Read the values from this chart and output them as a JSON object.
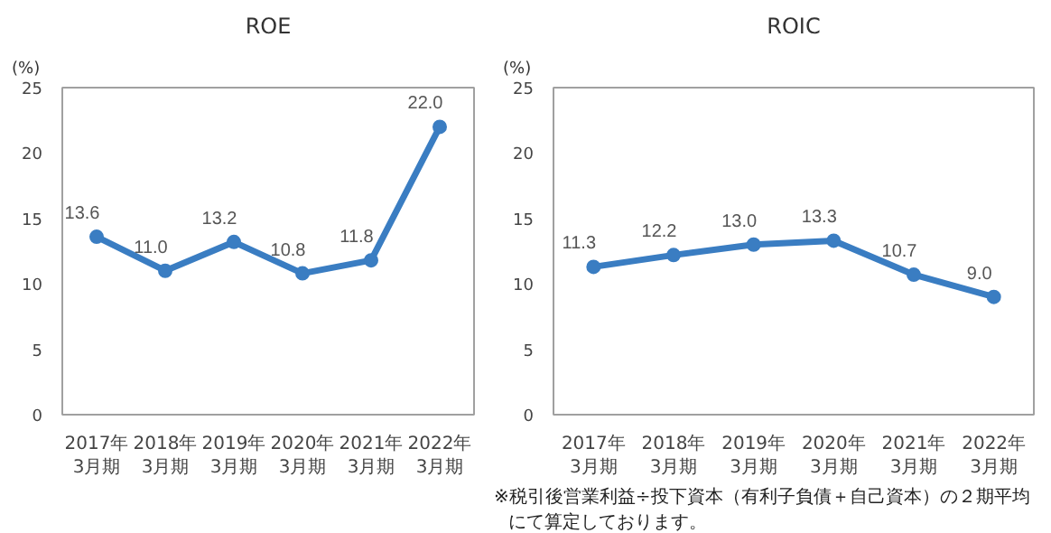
{
  "chart_data": [
    {
      "type": "line",
      "title": "ROE",
      "ylabel": "(%)",
      "categories": [
        "2017年\n3月期",
        "2018年\n3月期",
        "2019年\n3月期",
        "2020年\n3月期",
        "2021年\n3月期",
        "2022年\n3月期"
      ],
      "series": [
        {
          "color": "#3a7dc2",
          "values": [
            13.6,
            11.0,
            13.2,
            10.8,
            11.8,
            22.0
          ],
          "value_labels": [
            "13.6",
            "11.0",
            "13.2",
            "10.8",
            "11.8",
            "22.0"
          ]
        }
      ],
      "ylim": [
        0,
        25
      ],
      "yticks": [
        0,
        5,
        10,
        15,
        20,
        25
      ],
      "grid": false,
      "marker": "circle",
      "line_style": "solid"
    },
    {
      "type": "line",
      "title": "ROIC",
      "ylabel": "(%)",
      "categories": [
        "2017年\n3月期",
        "2018年\n3月期",
        "2019年\n3月期",
        "2020年\n3月期",
        "2021年\n3月期",
        "2022年\n3月期"
      ],
      "series": [
        {
          "color": "#3a7dc2",
          "values": [
            11.3,
            12.2,
            13.0,
            13.3,
            10.7,
            9.0
          ],
          "value_labels": [
            "11.3",
            "12.2",
            "13.0",
            "13.3",
            "10.7",
            "9.0"
          ]
        }
      ],
      "ylim": [
        0,
        25
      ],
      "yticks": [
        0,
        5,
        10,
        15,
        20,
        25
      ],
      "grid": false,
      "marker": "circle",
      "line_style": "solid",
      "annotations": [
        "※税引後営業利益÷投下資本（有利子負債＋自己資本）の２期平均",
        "にて算定しております。"
      ]
    }
  ]
}
